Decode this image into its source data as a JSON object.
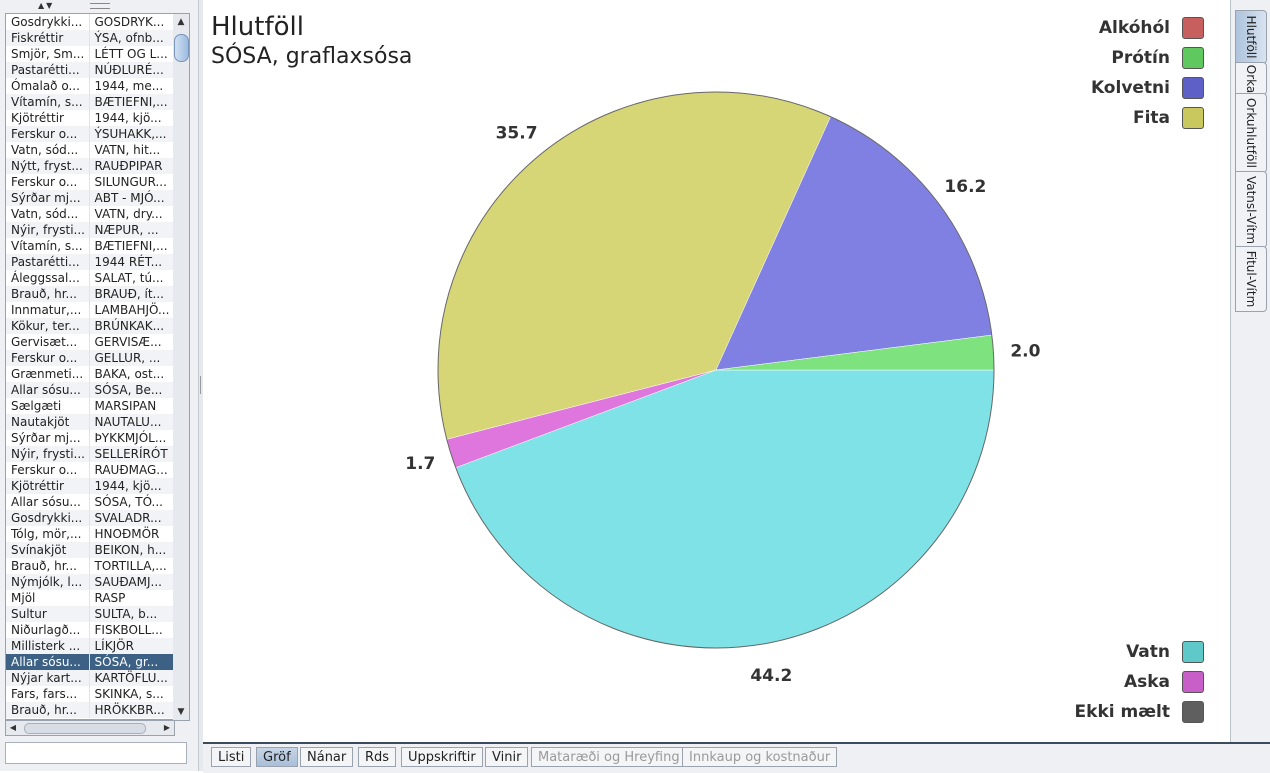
{
  "sidebar": {
    "rows": [
      [
        "Gosdrykki...",
        "GOSDRYK..."
      ],
      [
        "Fiskréttir",
        "ÝSA, ofnb..."
      ],
      [
        "Smjör, Sm...",
        "LÉTT OG L..."
      ],
      [
        "Pastarétti...",
        "NÚÐLURÉ..."
      ],
      [
        "Ómalað o...",
        "1944, me..."
      ],
      [
        "Vítamín, s...",
        "BÆTIEFNI,..."
      ],
      [
        "Kjötréttir",
        "1944, kjö..."
      ],
      [
        "Ferskur o...",
        "ÝSUHAKK,..."
      ],
      [
        "Vatn, sód...",
        "VATN, hit..."
      ],
      [
        "Nýtt, fryst...",
        "RAUÐPIPAR"
      ],
      [
        "Ferskur o...",
        "SILUNGUR..."
      ],
      [
        "Sýrðar mj...",
        "ABT - MJÓ..."
      ],
      [
        "Vatn, sód...",
        "VATN, dry..."
      ],
      [
        "Nýir, frysti...",
        "NÆPUR, ..."
      ],
      [
        "Vítamín, s...",
        "BÆTIEFNI,..."
      ],
      [
        "Pastarétti...",
        "1944 RÉT..."
      ],
      [
        "Áleggssal...",
        "SALAT, tú..."
      ],
      [
        "Brauð, hr...",
        "BRAUÐ, ít..."
      ],
      [
        "Innmatur,...",
        "LAMBAHJÖ..."
      ],
      [
        "Kökur, ter...",
        "BRÚNKAK..."
      ],
      [
        "Gervisæt...",
        "GERVISÆ..."
      ],
      [
        "Ferskur o...",
        "GELLUR, ..."
      ],
      [
        "Grænmeti...",
        "BAKA, ost..."
      ],
      [
        "Allar sósu...",
        "SÓSA, Be..."
      ],
      [
        "Sælgæti",
        "MARSIPAN"
      ],
      [
        "Nautakjöt",
        "NAUTALU..."
      ],
      [
        "Sýrðar mj...",
        "ÞYKKMJÓL..."
      ],
      [
        "Nýir, frysti...",
        "SELLERÍRÓT"
      ],
      [
        "Ferskur o...",
        "RAUÐMAG..."
      ],
      [
        "Kjötréttir",
        "1944, kjö..."
      ],
      [
        "Allar sósu...",
        "SÓSA, TÓ..."
      ],
      [
        "Gosdrykki...",
        "SVALADR..."
      ],
      [
        "Tólg, mör,...",
        "HNOÐMÖR"
      ],
      [
        "Svínakjöt",
        "BEIKON, h..."
      ],
      [
        "Brauð, hr...",
        "TORTILLA,..."
      ],
      [
        "Nýmjólk, l...",
        "SAUÐAMJ..."
      ],
      [
        "Mjöl",
        "RASP"
      ],
      [
        "Sultur",
        "SULTA, b..."
      ],
      [
        "Niðurlagð...",
        "FISKBOLL..."
      ],
      [
        "Millisterk ...",
        "LÍKJÖR"
      ],
      [
        "Allar sósu...",
        "SÓSA, gr..."
      ],
      [
        "Nýjar kart...",
        "KARTÖFLU..."
      ],
      [
        "Fars, fars...",
        "SKINKA, s..."
      ],
      [
        "Brauð, hr...",
        "HRÖKKBR..."
      ]
    ],
    "selected_index": 40
  },
  "chart_title": "Hlutföll",
  "chart_subtitle": "SÓSA, graflaxsósa",
  "legend_top": [
    {
      "label": "Alkóhól",
      "color": "#c85f5f"
    },
    {
      "label": "Prótín",
      "color": "#5fc85f"
    },
    {
      "label": "Kolvetni",
      "color": "#5f5fc8"
    },
    {
      "label": "Fita",
      "color": "#c8c85f"
    }
  ],
  "legend_bottom": [
    {
      "label": "Vatn",
      "color": "#5fc8c8"
    },
    {
      "label": "Aska",
      "color": "#c85fc8"
    },
    {
      "label": "Ekki mælt",
      "color": "#5f5f5f"
    }
  ],
  "chart_data": {
    "type": "pie",
    "title": "Hlutföll",
    "subtitle": "SÓSA, graflaxsósa",
    "slices": [
      {
        "label": "Vatn",
        "value": 44.2,
        "color": "#7ee2e6"
      },
      {
        "label": "Aska",
        "value": 1.7,
        "color": "#de76de"
      },
      {
        "label": "Fita",
        "value": 35.7,
        "color": "#d6d676"
      },
      {
        "label": "Kolvetni",
        "value": 16.2,
        "color": "#8080e2"
      },
      {
        "label": "Prótín",
        "value": 2.0,
        "color": "#7ee27e"
      }
    ],
    "value_labels": [
      "44.2",
      "1.7",
      "35.7",
      "16.2",
      "2.0"
    ]
  },
  "right_tabs": [
    "Hlutföll",
    "Orka",
    "Orkuhlutföll",
    "Vatnsl-Vítm",
    "Fitul-Vítm"
  ],
  "bottom_tabs": [
    {
      "label": "Listi",
      "state": "normal"
    },
    {
      "label": "Gröf",
      "state": "active"
    },
    {
      "label": "Nánar",
      "state": "normal"
    },
    {
      "label": "Rds",
      "state": "normal"
    },
    {
      "label": "Uppskriftir",
      "state": "normal"
    },
    {
      "label": "Vinir",
      "state": "normal"
    },
    {
      "label": "Mataræði og Hreyfing",
      "state": "disabled"
    },
    {
      "label": "Innkaup og kostnaður",
      "state": "disabled"
    }
  ]
}
